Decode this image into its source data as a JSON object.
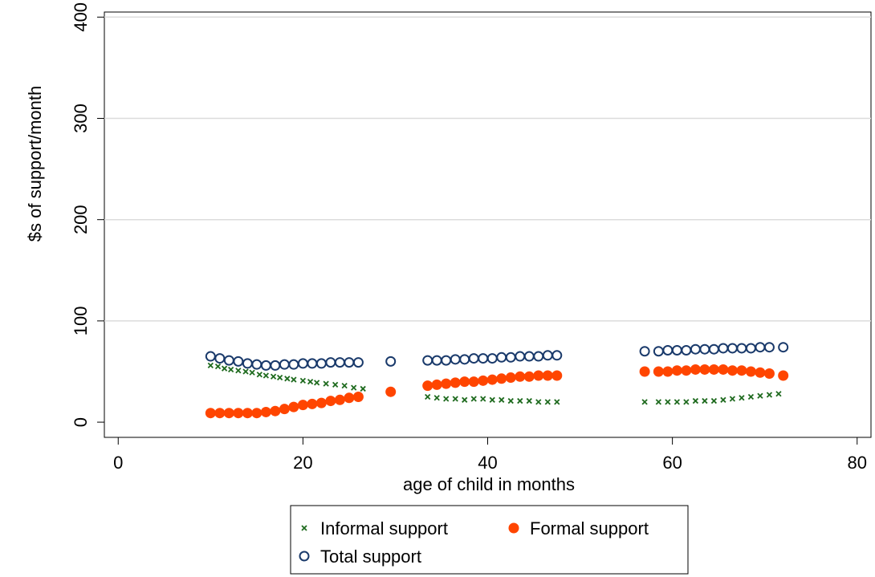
{
  "chart_data": {
    "type": "scatter",
    "title": "",
    "xlabel": "age of child in months",
    "ylabel": "$s of support/month",
    "xlim": [
      -1.5,
      81.5
    ],
    "ylim": [
      -15,
      405
    ],
    "xticks": [
      0,
      20,
      40,
      60,
      80
    ],
    "yticks": [
      0,
      100,
      200,
      300,
      400
    ],
    "grid": "horizontal",
    "legend_position": "bottom",
    "series": [
      {
        "name": "Informal support",
        "marker": "x",
        "color": "#1f6b1f",
        "x": [
          10,
          10.8,
          11.5,
          12.2,
          13,
          13.8,
          14.5,
          15.3,
          16,
          16.8,
          17.5,
          18.3,
          19,
          20,
          20.8,
          21.5,
          22.5,
          23.5,
          24.5,
          25.5,
          26.5,
          33.5,
          34.5,
          35.5,
          36.5,
          37.5,
          38.5,
          39.5,
          40.5,
          41.5,
          42.5,
          43.5,
          44.5,
          45.5,
          46.5,
          47.5,
          57,
          58.5,
          59.5,
          60.5,
          61.5,
          62.5,
          63.5,
          64.5,
          65.5,
          66.5,
          67.5,
          68.5,
          69.5,
          70.5,
          71.5
        ],
        "y": [
          56,
          55,
          53,
          52,
          51,
          50,
          49,
          47,
          46,
          45,
          44,
          43,
          42,
          41,
          40,
          39,
          38,
          37,
          36,
          34,
          33,
          25,
          24,
          23,
          23,
          22,
          23,
          23,
          22,
          22,
          21,
          21,
          21,
          20,
          20,
          20,
          20,
          20,
          20,
          20,
          20,
          21,
          21,
          21,
          22,
          23,
          24,
          25,
          26,
          27,
          28
        ]
      },
      {
        "name": "Formal support",
        "marker": "filled-circle",
        "color": "#ff4500",
        "x": [
          10,
          11,
          12,
          13,
          14,
          15,
          16,
          17,
          18,
          19,
          20,
          21,
          22,
          23,
          24,
          25,
          26,
          29.5,
          33.5,
          34.5,
          35.5,
          36.5,
          37.5,
          38.5,
          39.5,
          40.5,
          41.5,
          42.5,
          43.5,
          44.5,
          45.5,
          46.5,
          47.5,
          57,
          58.5,
          59.5,
          60.5,
          61.5,
          62.5,
          63.5,
          64.5,
          65.5,
          66.5,
          67.5,
          68.5,
          69.5,
          70.5,
          72
        ],
        "y": [
          9,
          9,
          9,
          9,
          9,
          9,
          10,
          11,
          13,
          15,
          17,
          18,
          19,
          21,
          22,
          24,
          25,
          30,
          36,
          37,
          38,
          39,
          40,
          40,
          41,
          42,
          43,
          44,
          45,
          45,
          46,
          46,
          46,
          50,
          50,
          50,
          51,
          51,
          52,
          52,
          52,
          52,
          51,
          51,
          50,
          49,
          48,
          46
        ]
      },
      {
        "name": "Total support",
        "marker": "hollow-circle",
        "color": "#1a3a6b",
        "x": [
          10,
          11,
          12,
          13,
          14,
          15,
          16,
          17,
          18,
          19,
          20,
          21,
          22,
          23,
          24,
          25,
          26,
          29.5,
          33.5,
          34.5,
          35.5,
          36.5,
          37.5,
          38.5,
          39.5,
          40.5,
          41.5,
          42.5,
          43.5,
          44.5,
          45.5,
          46.5,
          47.5,
          57,
          58.5,
          59.5,
          60.5,
          61.5,
          62.5,
          63.5,
          64.5,
          65.5,
          66.5,
          67.5,
          68.5,
          69.5,
          70.5,
          72
        ],
        "y": [
          65,
          63,
          61,
          60,
          58,
          57,
          56,
          56,
          57,
          57,
          58,
          58,
          58,
          59,
          59,
          59,
          59,
          60,
          61,
          61,
          61,
          62,
          62,
          63,
          63,
          63,
          64,
          64,
          65,
          65,
          65,
          66,
          66,
          70,
          70,
          71,
          71,
          71,
          72,
          72,
          72,
          73,
          73,
          73,
          73,
          74,
          74,
          74
        ]
      }
    ]
  }
}
